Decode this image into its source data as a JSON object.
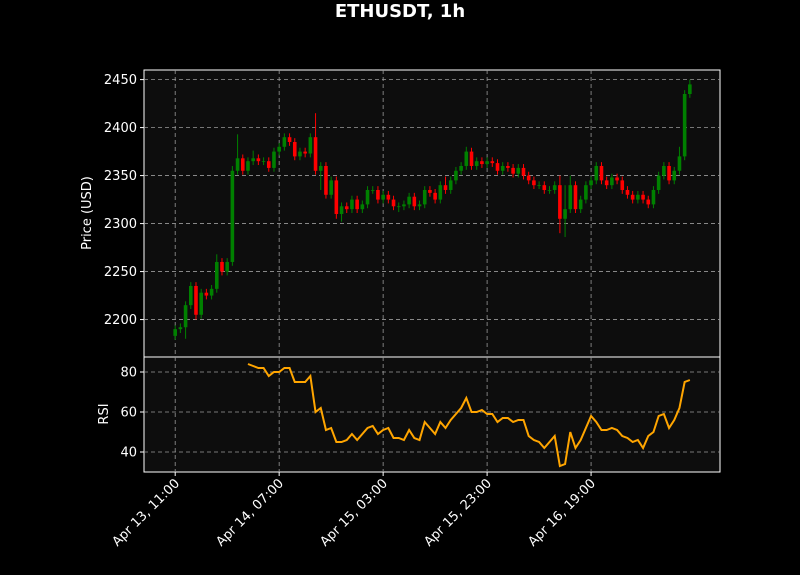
{
  "chart_data": [
    {
      "type": "candlestick",
      "title": "ETHUSDT, 1h",
      "ylabel": "Price (USD)",
      "open": [
        2183,
        2190,
        2192,
        2215,
        2235,
        2205,
        2228,
        2225,
        2232,
        2260,
        2250,
        2260,
        2355,
        2368,
        2355,
        2365,
        2368,
        2365,
        2365,
        2358,
        2375,
        2380,
        2390,
        2385,
        2370,
        2375,
        2373,
        2390,
        2355,
        2360,
        2330,
        2345,
        2310,
        2318,
        2315,
        2325,
        2315,
        2320,
        2335,
        2335,
        2325,
        2330,
        2325,
        2318,
        2318,
        2320,
        2328,
        2318,
        2320,
        2335,
        2332,
        2325,
        2340,
        2335,
        2345,
        2355,
        2360,
        2375,
        2360,
        2365,
        2362,
        2365,
        2363,
        2355,
        2360,
        2358,
        2352,
        2358,
        2350,
        2345,
        2340,
        2340,
        2335,
        2335,
        2340,
        2305,
        2315,
        2340,
        2315,
        2325,
        2340,
        2345,
        2360,
        2345,
        2340,
        2348,
        2345,
        2335,
        2330,
        2325,
        2330,
        2325,
        2320,
        2335,
        2350,
        2360,
        2345,
        2355,
        2370,
        2435
      ],
      "high": [
        2194,
        2196,
        2219,
        2239,
        2239,
        2232,
        2232,
        2236,
        2268,
        2264,
        2264,
        2360,
        2393,
        2372,
        2369,
        2376,
        2372,
        2369,
        2369,
        2379,
        2384,
        2394,
        2394,
        2389,
        2379,
        2379,
        2394,
        2415,
        2364,
        2364,
        2349,
        2349,
        2322,
        2322,
        2329,
        2329,
        2324,
        2339,
        2339,
        2339,
        2334,
        2334,
        2329,
        2322,
        2324,
        2332,
        2332,
        2324,
        2339,
        2339,
        2336,
        2344,
        2349,
        2349,
        2359,
        2364,
        2380,
        2379,
        2369,
        2369,
        2369,
        2369,
        2367,
        2364,
        2364,
        2362,
        2362,
        2362,
        2354,
        2349,
        2344,
        2344,
        2339,
        2344,
        2350,
        2340,
        2350,
        2344,
        2329,
        2344,
        2349,
        2364,
        2364,
        2349,
        2352,
        2352,
        2349,
        2339,
        2334,
        2334,
        2334,
        2329,
        2339,
        2354,
        2364,
        2364,
        2359,
        2380,
        2439,
        2450
      ],
      "low": [
        2179,
        2186,
        2180,
        2211,
        2200,
        2201,
        2221,
        2221,
        2228,
        2246,
        2246,
        2256,
        2351,
        2351,
        2351,
        2361,
        2361,
        2361,
        2354,
        2354,
        2371,
        2376,
        2381,
        2366,
        2366,
        2369,
        2369,
        2351,
        2335,
        2326,
        2326,
        2305,
        2302,
        2311,
        2311,
        2311,
        2311,
        2316,
        2331,
        2321,
        2321,
        2321,
        2314,
        2312,
        2314,
        2316,
        2314,
        2314,
        2316,
        2328,
        2321,
        2321,
        2331,
        2331,
        2341,
        2351,
        2356,
        2356,
        2356,
        2358,
        2358,
        2359,
        2351,
        2351,
        2354,
        2348,
        2348,
        2346,
        2341,
        2336,
        2336,
        2331,
        2331,
        2331,
        2290,
        2286,
        2311,
        2311,
        2311,
        2321,
        2336,
        2341,
        2341,
        2336,
        2336,
        2341,
        2331,
        2326,
        2321,
        2321,
        2321,
        2316,
        2316,
        2331,
        2346,
        2341,
        2341,
        2351,
        2366,
        2431
      ],
      "close": [
        2190,
        2192,
        2215,
        2235,
        2205,
        2228,
        2225,
        2232,
        2260,
        2250,
        2260,
        2355,
        2368,
        2355,
        2365,
        2368,
        2365,
        2365,
        2358,
        2375,
        2380,
        2390,
        2385,
        2370,
        2375,
        2373,
        2390,
        2355,
        2360,
        2330,
        2345,
        2310,
        2318,
        2315,
        2325,
        2315,
        2320,
        2335,
        2335,
        2325,
        2330,
        2325,
        2318,
        2318,
        2320,
        2328,
        2318,
        2320,
        2335,
        2332,
        2325,
        2340,
        2335,
        2345,
        2355,
        2360,
        2375,
        2360,
        2365,
        2362,
        2365,
        2363,
        2355,
        2360,
        2358,
        2352,
        2358,
        2350,
        2345,
        2340,
        2340,
        2335,
        2335,
        2340,
        2305,
        2315,
        2340,
        2315,
        2325,
        2340,
        2345,
        2360,
        2345,
        2340,
        2348,
        2345,
        2335,
        2330,
        2325,
        2330,
        2325,
        2320,
        2335,
        2350,
        2360,
        2345,
        2355,
        2370,
        2435,
        2445
      ],
      "up_color": "#008000",
      "down_color": "#ff0000",
      "xlim": [
        -6,
        104.8
      ],
      "xticks": [
        {
          "value": 0,
          "label": "Apr 13, 11:00"
        },
        {
          "value": 20,
          "label": "Apr 14, 07:00"
        },
        {
          "value": 40,
          "label": "Apr 15, 03:00"
        },
        {
          "value": 60,
          "label": "Apr 15, 23:00"
        },
        {
          "value": 80,
          "label": "Apr 16, 19:00"
        }
      ],
      "ylim": [
        2161,
        2460
      ],
      "yticks": [
        2200,
        2250,
        2300,
        2350,
        2400,
        2450
      ],
      "grid": true
    },
    {
      "type": "line",
      "ylabel": "RSI",
      "color": "#ffa500",
      "values": [
        null,
        null,
        null,
        null,
        null,
        null,
        null,
        null,
        null,
        null,
        null,
        null,
        null,
        null,
        84,
        83,
        82,
        82,
        78,
        80,
        80,
        82,
        82,
        75,
        75,
        75,
        78,
        60,
        62,
        51,
        52,
        45,
        45,
        46,
        49,
        46,
        49,
        52,
        53,
        49,
        51,
        52,
        47,
        47,
        46,
        51,
        47,
        46,
        55,
        52,
        49,
        55,
        52,
        56,
        59,
        62,
        67,
        60,
        60,
        61,
        59,
        59,
        55,
        57,
        57,
        55,
        56,
        56,
        48,
        46,
        45,
        42,
        45,
        48,
        33,
        34,
        50,
        42,
        46,
        52,
        58,
        55,
        51,
        51,
        52,
        51,
        48,
        47,
        45,
        46,
        42,
        48,
        50,
        58,
        59,
        52,
        56,
        62,
        75,
        76
      ],
      "ylim": [
        30,
        87.5
      ],
      "yticks": [
        40,
        60,
        80
      ],
      "grid": true
    }
  ]
}
